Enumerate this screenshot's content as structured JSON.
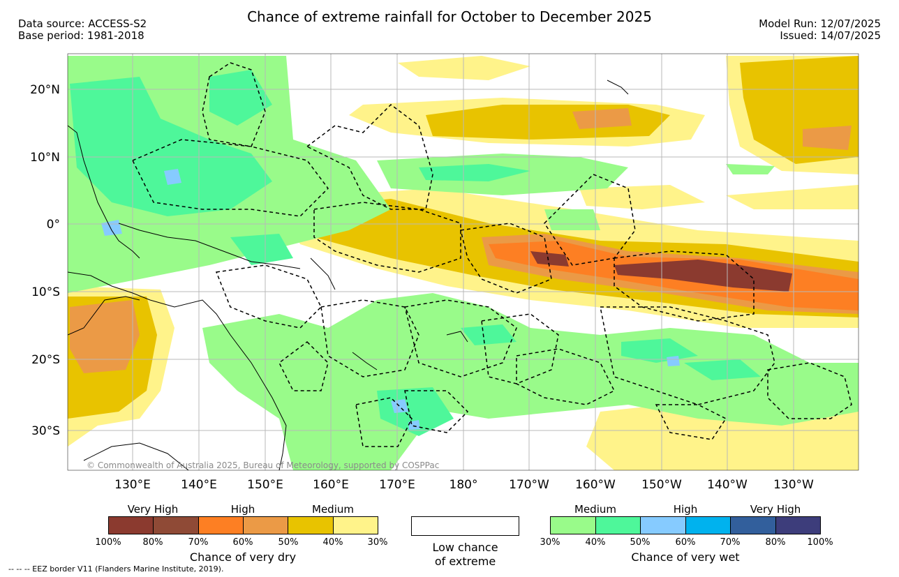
{
  "title": "Chance of extreme rainfall for October to December 2025",
  "source": {
    "line1": "Data source: ACCESS-S2",
    "line2": "Base period: 1981-2018"
  },
  "run": {
    "line1": "Model Run: 12/07/2025",
    "line2": "Issued: 14/07/2025"
  },
  "map": {
    "lat_labels": [
      "20°N",
      "10°N",
      "0°",
      "10°S",
      "20°S",
      "30°S"
    ],
    "lon_labels": [
      "130°E",
      "140°E",
      "150°E",
      "160°E",
      "170°E",
      "180°",
      "170°W",
      "160°W",
      "150°W",
      "140°W",
      "130°W"
    ],
    "copyright": "© Commonwealth of Australia 2025, Bureau of Meteorology, supported by COSPPac"
  },
  "legend_dry": {
    "categories": [
      "Very High",
      "High",
      "Medium"
    ],
    "ticks": [
      "100%",
      "80%",
      "70%",
      "60%",
      "50%",
      "40%",
      "30%"
    ],
    "colors": [
      "#8b3a2f",
      "#8f4a36",
      "#fd7f23",
      "#eb9a46",
      "#e8c300",
      "#fff38a"
    ],
    "title": "Chance of very dry"
  },
  "legend_low": {
    "line1": "Low chance",
    "line2": "of extreme"
  },
  "legend_wet": {
    "categories": [
      "Medium",
      "High",
      "Very High"
    ],
    "ticks": [
      "30%",
      "40%",
      "50%",
      "60%",
      "70%",
      "80%",
      "100%"
    ],
    "colors": [
      "#99fb8a",
      "#4ef79a",
      "#86cbff",
      "#00b2ee",
      "#325f9c",
      "#3d3d7b"
    ],
    "title": "Chance of very wet"
  },
  "footer": "--  --  -- EEZ border V11 (Flanders Marine Institute, 2019)."
}
